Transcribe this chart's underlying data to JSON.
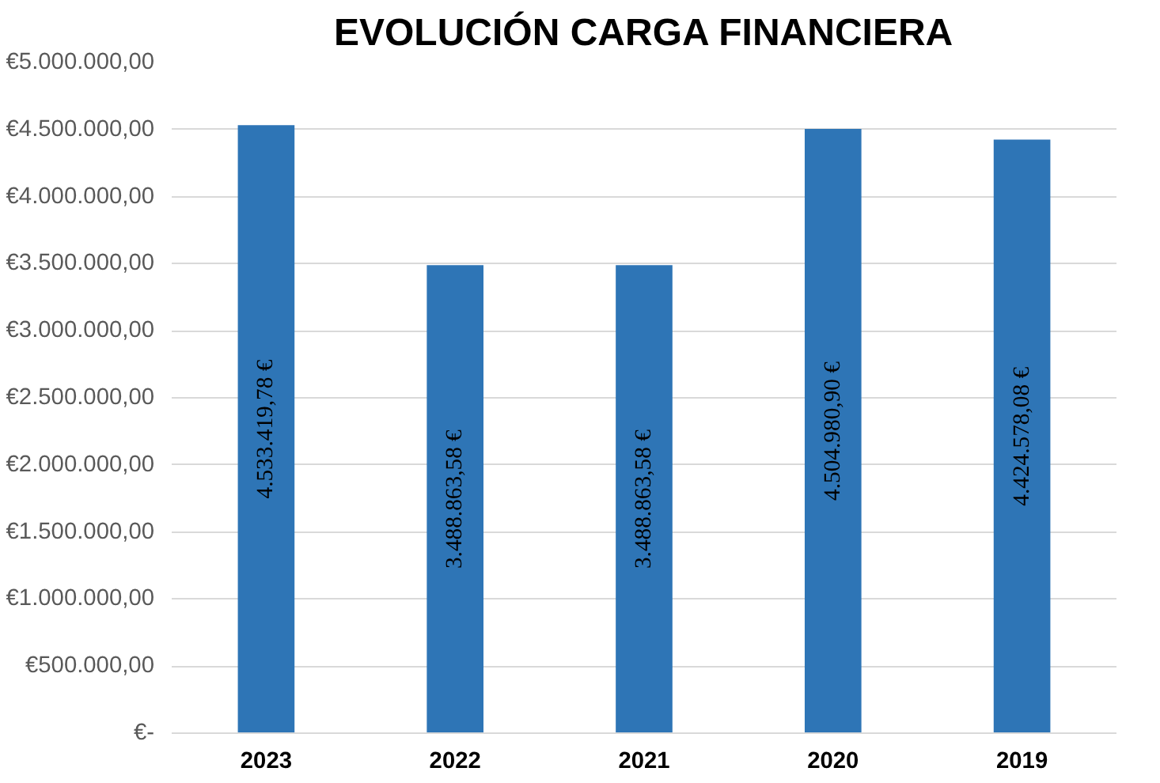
{
  "chart_data": {
    "type": "bar",
    "title": "EVOLUCIÓN CARGA FINANCIERA",
    "categories": [
      "2023",
      "2022",
      "2021",
      "2020",
      "2019"
    ],
    "values": [
      4533419.78,
      3488863.58,
      3488863.58,
      4504980.9,
      4424578.08
    ],
    "value_labels": [
      "4.533.419,78 €",
      "3.488.863,58 €",
      "3.488.863,58 €",
      "4.504.980,90 €",
      "4.424.578,08 €"
    ],
    "color": "#2e75b6",
    "ylim": [
      0,
      5000000
    ],
    "yticks": [
      {
        "value": 0,
        "label": "€-"
      },
      {
        "value": 500000,
        "label": "€500.000,00"
      },
      {
        "value": 1000000,
        "label": "€1.000.000,00"
      },
      {
        "value": 1500000,
        "label": "€1.500.000,00"
      },
      {
        "value": 2000000,
        "label": "€2.000.000,00"
      },
      {
        "value": 2500000,
        "label": "€2.500.000,00"
      },
      {
        "value": 3000000,
        "label": "€3.000.000,00"
      },
      {
        "value": 3500000,
        "label": "€3.500.000,00"
      },
      {
        "value": 4000000,
        "label": "€4.000.000,00"
      },
      {
        "value": 4500000,
        "label": "€4.500.000,00"
      },
      {
        "value": 5000000,
        "label": "€5.000.000,00"
      }
    ],
    "grid": "y"
  }
}
